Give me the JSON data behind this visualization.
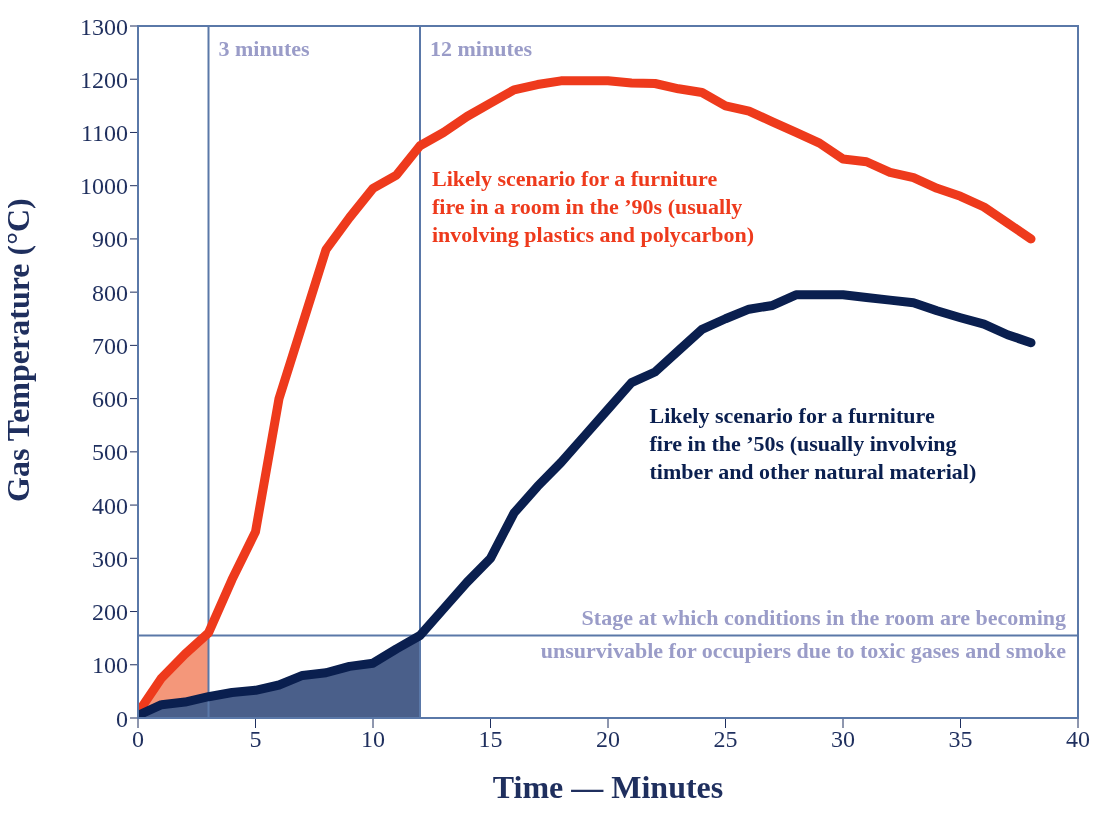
{
  "chart_data": {
    "type": "line",
    "xlabel": "Time — Minutes",
    "ylabel": "Gas Temperature (°C)",
    "xlim": [
      0,
      40
    ],
    "xticks": [
      0,
      5,
      10,
      15,
      20,
      25,
      30,
      35,
      40
    ],
    "ylim": [
      0,
      1300
    ],
    "yticks": [
      0,
      100,
      200,
      300,
      400,
      500,
      600,
      700,
      800,
      900,
      1000,
      1100,
      1200,
      1300
    ],
    "grid": false,
    "marker": "none",
    "line_style": "solid",
    "x": [
      0,
      1,
      2,
      3,
      4,
      5,
      6,
      7,
      8,
      9,
      10,
      11,
      12,
      13,
      14,
      15,
      16,
      17,
      18,
      19,
      20,
      21,
      22,
      23,
      24,
      25,
      26,
      27,
      28,
      29,
      30,
      31,
      32,
      33,
      34,
      35,
      36,
      37,
      38
    ],
    "series": [
      {
        "type": "area",
        "color": "#f4977a",
        "x": [
          0,
          1,
          2,
          3
        ],
        "values": [
          10,
          75,
          120,
          160
        ]
      },
      {
        "type": "area",
        "color": "#4a5f8a",
        "x": [
          0,
          1,
          2,
          3,
          4,
          5,
          6,
          7,
          8,
          9,
          10,
          11,
          12
        ],
        "values": [
          5,
          25,
          30,
          40,
          48,
          52,
          62,
          80,
          85,
          97,
          103,
          130,
          155
        ]
      },
      {
        "name": "Likely scenario for a furniture fire in a room in the ’90s (usually involving plastics and polycarbon)",
        "color": "#ee3a1c",
        "values": [
          10,
          75,
          120,
          160,
          260,
          350,
          600,
          740,
          880,
          940,
          995,
          1020,
          1075,
          1100,
          1130,
          1155,
          1180,
          1190,
          1197,
          1197,
          1197,
          1193,
          1192,
          1182,
          1175,
          1150,
          1140,
          1120,
          1100,
          1080,
          1050,
          1045,
          1025,
          1015,
          995,
          980,
          960,
          930,
          900
        ]
      },
      {
        "name": "Likely scenario for a furniture fire in the ’50s (usually involving timber and other natural material)",
        "color": "#0a1f4f",
        "values": [
          5,
          25,
          30,
          40,
          48,
          52,
          62,
          80,
          85,
          97,
          103,
          130,
          155,
          205,
          255,
          300,
          385,
          435,
          480,
          530,
          580,
          630,
          650,
          690,
          730,
          750,
          768,
          775,
          795,
          795,
          795,
          790,
          785,
          780,
          765,
          752,
          740,
          720,
          705
        ]
      }
    ],
    "ref_lines": [
      {
        "axis": "x",
        "value": 3,
        "label": "3 minutes",
        "color": "#5a78a8"
      },
      {
        "axis": "x",
        "value": 12,
        "label": "12 minutes",
        "color": "#5a78a8"
      },
      {
        "axis": "y",
        "value": 155,
        "label": "Stage at which conditions in the room are becoming unsurvivable for occupiers due to toxic gases and smoke",
        "color": "#5a78a8"
      }
    ]
  }
}
